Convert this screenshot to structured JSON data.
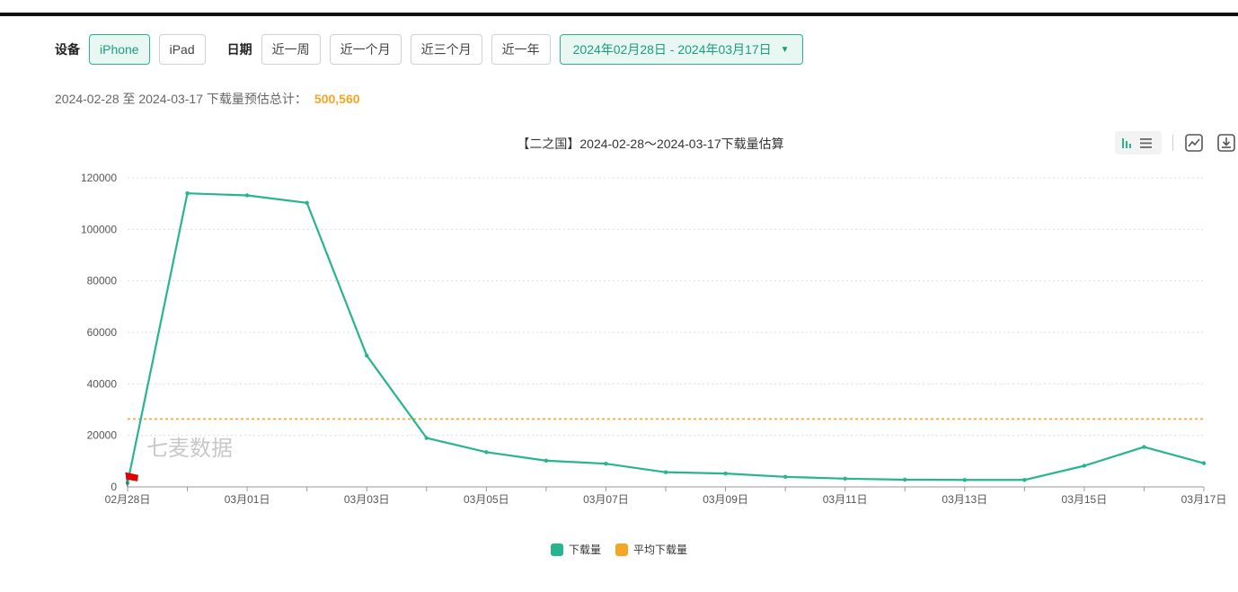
{
  "filters": {
    "device_label": "设备",
    "devices": [
      {
        "label": "iPhone",
        "active": true
      },
      {
        "label": "iPad",
        "active": false
      }
    ],
    "date_label": "日期",
    "quick_ranges": [
      "近一周",
      "近一个月",
      "近三个月",
      "近一年"
    ],
    "selected_range": "2024年02月28日 - 2024年03月17日"
  },
  "summary": {
    "text": "2024-02-28 至 2024-03-17 下载量预估总计：",
    "total": "500,560"
  },
  "watermark": "七麦数据",
  "colors": {
    "accent": "#27b48f",
    "average": "#f5a623",
    "marker": "#e00000"
  },
  "chart_data": {
    "type": "line",
    "title": "【二之国】2024-02-28～2024-03-17下载量估算",
    "x": [
      "02月28日",
      "02月29日",
      "03月01日",
      "03月02日",
      "03月03日",
      "03月04日",
      "03月05日",
      "03月06日",
      "03月07日",
      "03月08日",
      "03月09日",
      "03月10日",
      "03月11日",
      "03月12日",
      "03月13日",
      "03月14日",
      "03月15日",
      "03月16日",
      "03月17日"
    ],
    "x_tick_labels": [
      "02月28日",
      "03月01日",
      "03月03日",
      "03月05日",
      "03月07日",
      "03月09日",
      "03月11日",
      "03月13日",
      "03月15日",
      "03月17日"
    ],
    "series": [
      {
        "name": "下载量",
        "values": [
          1500,
          114000,
          113200,
          110300,
          51000,
          19000,
          13500,
          10200,
          9000,
          5700,
          5200,
          3900,
          3200,
          2800,
          2700,
          2700,
          8200,
          15500,
          9200
        ]
      }
    ],
    "average": {
      "name": "平均下载量",
      "value": 26345
    },
    "ylim": [
      0,
      120000
    ],
    "y_ticks": [
      0,
      20000,
      40000,
      60000,
      80000,
      100000,
      120000
    ],
    "grid": true,
    "legend": "bottom-center"
  }
}
